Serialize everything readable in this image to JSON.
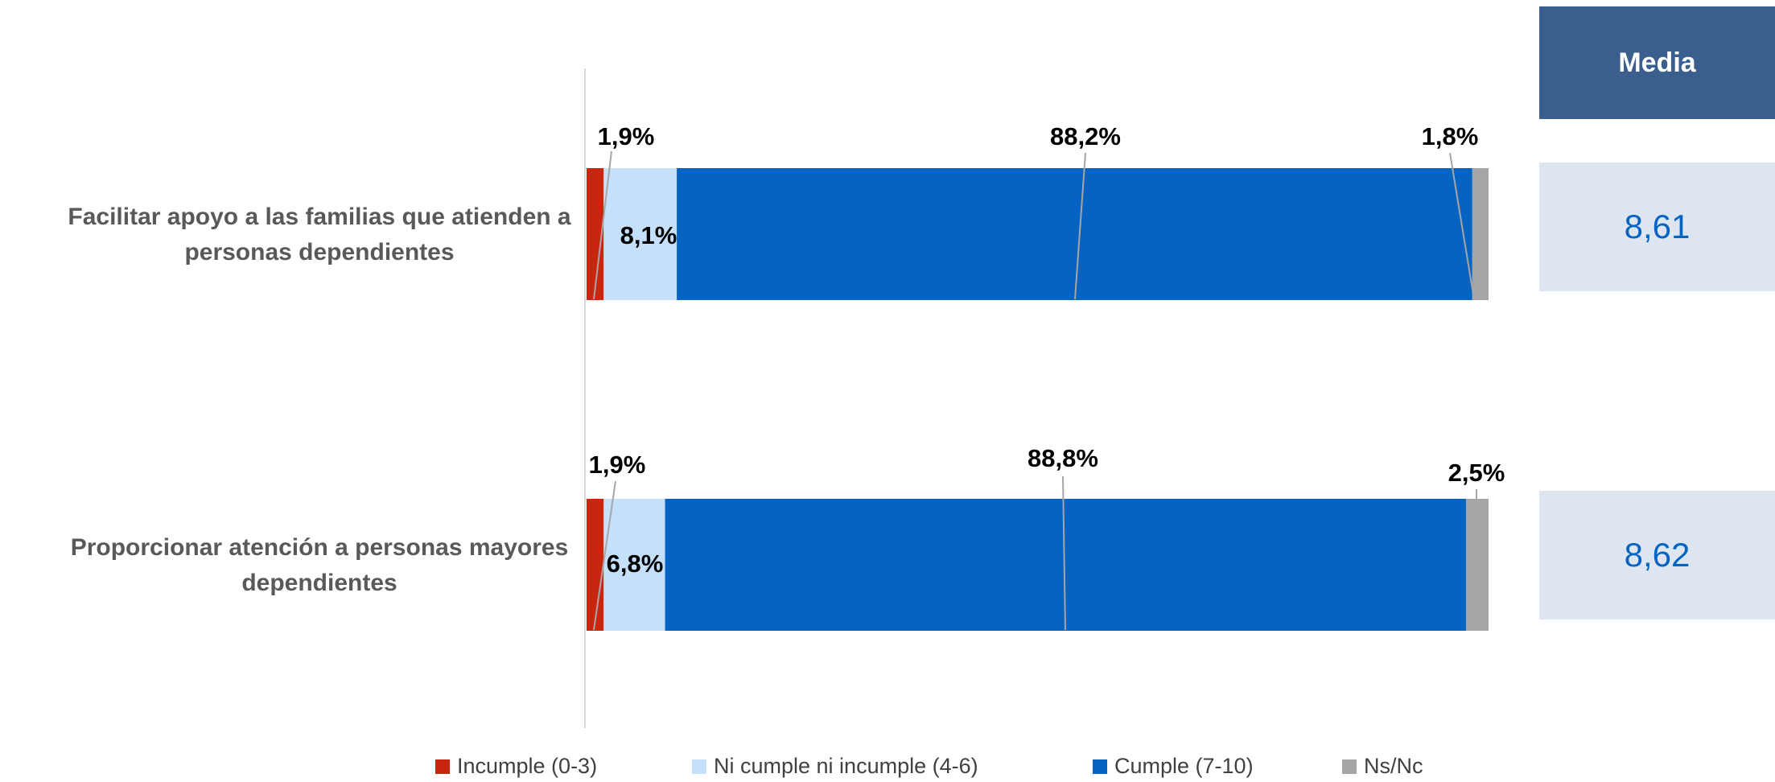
{
  "media": {
    "header": "Media",
    "values": [
      "8,61",
      "8,62"
    ]
  },
  "chart_data": {
    "type": "bar",
    "orientation": "horizontal",
    "stacked": true,
    "categories": [
      [
        "Facilitar apoyo a las familias que atienden a",
        "personas dependientes"
      ],
      [
        "Proporcionar atención a personas mayores",
        "dependientes"
      ]
    ],
    "series": [
      {
        "name": "Incumple (0-3)",
        "color": "#c9260f",
        "values": [
          1.9,
          1.9
        ],
        "labels": [
          "1,9%",
          "1,9%"
        ]
      },
      {
        "name": "Ni cumple ni incumple (4-6)",
        "color": "#c5e0fa",
        "values": [
          8.1,
          6.8
        ],
        "labels": [
          "8,1%",
          "6,8%"
        ]
      },
      {
        "name": "Cumple (7-10)",
        "color": "#0563c1",
        "values": [
          88.2,
          88.8
        ],
        "labels": [
          "88,2%",
          "88,8%"
        ]
      },
      {
        "name": "Ns/Nc",
        "color": "#a6a6a6",
        "values": [
          1.8,
          2.5
        ],
        "labels": [
          "1,8%",
          "2,5%"
        ]
      }
    ],
    "xlim": [
      0,
      100
    ],
    "legend_position": "bottom"
  }
}
